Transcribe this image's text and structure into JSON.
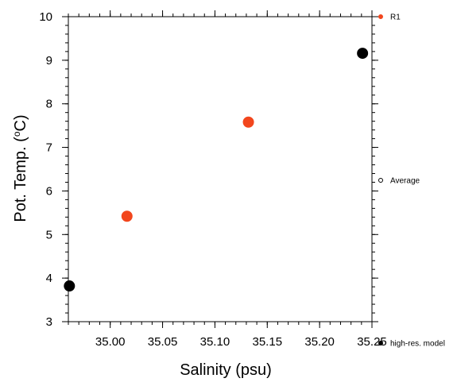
{
  "chart_data": {
    "type": "scatter",
    "xlabel": "Salinity (psu)",
    "ylabel_main": "Pot. Temp. (",
    "ylabel_unit": "o",
    "ylabel_tail": "C)",
    "xlim": [
      34.96,
      35.25
    ],
    "ylim": [
      3,
      10
    ],
    "x_ticks": [
      35.0,
      35.05,
      35.1,
      35.15,
      35.2,
      35.25
    ],
    "x_tick_labels": [
      "35.00",
      "35.05",
      "35.10",
      "35.15",
      "35.20",
      "35.25"
    ],
    "y_ticks": [
      3,
      4,
      5,
      6,
      7,
      8,
      9,
      10
    ],
    "y_tick_labels": [
      "3",
      "4",
      "5",
      "6",
      "7",
      "8",
      "9",
      "10"
    ],
    "series": [
      {
        "name": "R1",
        "color": "#f2461d",
        "marker": "filled-circle",
        "points": [
          {
            "x": 35.016,
            "y": 5.42
          },
          {
            "x": 35.132,
            "y": 7.58
          }
        ]
      },
      {
        "name": "Average",
        "color": "#000000",
        "marker": "open-circle",
        "points": []
      },
      {
        "name": "high-res. model",
        "color": "#000000",
        "marker": "filled-circle",
        "points": [
          {
            "x": 34.961,
            "y": 3.82
          },
          {
            "x": 35.241,
            "y": 9.16
          }
        ]
      }
    ],
    "legend_position": "right"
  }
}
